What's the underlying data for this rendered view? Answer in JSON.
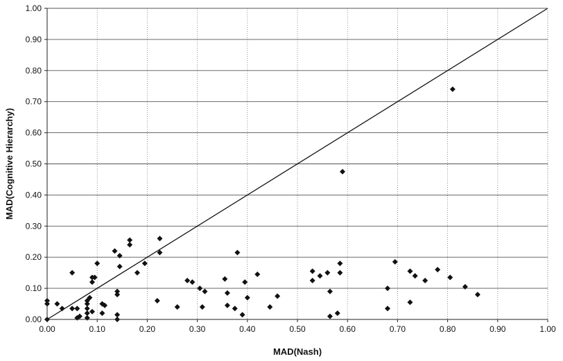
{
  "chart_data": {
    "type": "scatter",
    "title": "",
    "xlabel": "MAD(Nash)",
    "ylabel": "MAD(Cognitive Hierarchy)",
    "xlim": [
      0,
      1
    ],
    "ylim": [
      0,
      1
    ],
    "x_ticks": [
      "0.00",
      "0.10",
      "0.20",
      "0.30",
      "0.40",
      "0.50",
      "0.60",
      "0.70",
      "0.80",
      "0.90",
      "1.00"
    ],
    "y_ticks": [
      "0.00",
      "0.10",
      "0.20",
      "0.30",
      "0.40",
      "0.50",
      "0.60",
      "0.70",
      "0.80",
      "0.90",
      "1.00"
    ],
    "grid": "major y gridlines (solid) and x gridlines (dotted)",
    "reference_line": {
      "from": [
        0,
        0
      ],
      "to": [
        1,
        1
      ]
    },
    "marker": "diamond",
    "colors": {
      "marker": "#111111",
      "grid": "#555555",
      "line": "#111111"
    },
    "points": [
      [
        0.0,
        0.06
      ],
      [
        0.0,
        0.05
      ],
      [
        0.0,
        0.0
      ],
      [
        0.02,
        0.05
      ],
      [
        0.03,
        0.035
      ],
      [
        0.05,
        0.15
      ],
      [
        0.05,
        0.035
      ],
      [
        0.06,
        0.035
      ],
      [
        0.06,
        0.005
      ],
      [
        0.065,
        0.01
      ],
      [
        0.08,
        0.06
      ],
      [
        0.08,
        0.05
      ],
      [
        0.08,
        0.035
      ],
      [
        0.08,
        0.02
      ],
      [
        0.08,
        0.005
      ],
      [
        0.085,
        0.07
      ],
      [
        0.09,
        0.135
      ],
      [
        0.09,
        0.12
      ],
      [
        0.09,
        0.025
      ],
      [
        0.095,
        0.135
      ],
      [
        0.1,
        0.18
      ],
      [
        0.11,
        0.05
      ],
      [
        0.11,
        0.02
      ],
      [
        0.115,
        0.045
      ],
      [
        0.135,
        0.22
      ],
      [
        0.14,
        0.09
      ],
      [
        0.14,
        0.08
      ],
      [
        0.14,
        0.015
      ],
      [
        0.14,
        0.0
      ],
      [
        0.145,
        0.205
      ],
      [
        0.145,
        0.17
      ],
      [
        0.165,
        0.255
      ],
      [
        0.165,
        0.24
      ],
      [
        0.18,
        0.15
      ],
      [
        0.195,
        0.18
      ],
      [
        0.22,
        0.06
      ],
      [
        0.225,
        0.26
      ],
      [
        0.225,
        0.215
      ],
      [
        0.26,
        0.04
      ],
      [
        0.28,
        0.125
      ],
      [
        0.29,
        0.12
      ],
      [
        0.305,
        0.1
      ],
      [
        0.31,
        0.04
      ],
      [
        0.315,
        0.09
      ],
      [
        0.355,
        0.13
      ],
      [
        0.36,
        0.085
      ],
      [
        0.36,
        0.045
      ],
      [
        0.375,
        0.035
      ],
      [
        0.38,
        0.215
      ],
      [
        0.39,
        0.015
      ],
      [
        0.395,
        0.12
      ],
      [
        0.4,
        0.07
      ],
      [
        0.42,
        0.145
      ],
      [
        0.445,
        0.04
      ],
      [
        0.46,
        0.075
      ],
      [
        0.53,
        0.155
      ],
      [
        0.53,
        0.125
      ],
      [
        0.545,
        0.14
      ],
      [
        0.56,
        0.15
      ],
      [
        0.565,
        0.09
      ],
      [
        0.565,
        0.01
      ],
      [
        0.58,
        0.02
      ],
      [
        0.585,
        0.18
      ],
      [
        0.585,
        0.15
      ],
      [
        0.59,
        0.475
      ],
      [
        0.68,
        0.1
      ],
      [
        0.68,
        0.035
      ],
      [
        0.695,
        0.185
      ],
      [
        0.725,
        0.155
      ],
      [
        0.725,
        0.055
      ],
      [
        0.735,
        0.14
      ],
      [
        0.755,
        0.125
      ],
      [
        0.78,
        0.16
      ],
      [
        0.805,
        0.135
      ],
      [
        0.81,
        0.74
      ],
      [
        0.835,
        0.105
      ],
      [
        0.86,
        0.08
      ]
    ]
  }
}
